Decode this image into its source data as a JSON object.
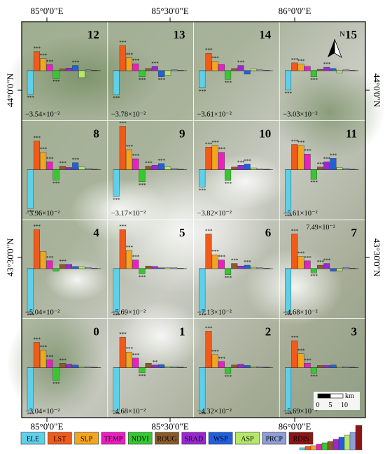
{
  "map": {
    "top_lon_labels": [
      "85°0'0\"E",
      "85°30'0\"E",
      "86°0'0\"E"
    ],
    "bottom_lon_labels": [
      "85°0'0\"E",
      "85°30'0\"E",
      "86°0'0\"E"
    ],
    "left_lat_labels": [
      "44°0'0\"N",
      "43°30'0\"N"
    ],
    "right_lat_labels": [
      "44°0'0\"N",
      "43°30'0\"N"
    ],
    "north_label": "N",
    "scale_bar": {
      "labels": [
        "0",
        "5",
        "10"
      ],
      "unit": "km"
    }
  },
  "legend": {
    "items": [
      {
        "label": "ELE",
        "color": "#5fd0ea"
      },
      {
        "label": "LST",
        "color": "#f05a1a"
      },
      {
        "label": "SLP",
        "color": "#f2a51f"
      },
      {
        "label": "TEMP",
        "color": "#ec1ec1"
      },
      {
        "label": "NDVI",
        "color": "#35c930"
      },
      {
        "label": "ROUG",
        "color": "#8a5a2a"
      },
      {
        "label": "SRAD",
        "color": "#9a28d0"
      },
      {
        "label": "WSP",
        "color": "#1f5fe0"
      },
      {
        "label": "ASP",
        "color": "#b5e86a"
      },
      {
        "label": "PRCP",
        "color": "#8fa0d8"
      },
      {
        "label": "RDIS",
        "color": "#8b1616"
      }
    ]
  },
  "panels": [
    {
      "id": "12",
      "ele": "−3.54×10⁻²",
      "values": [
        -0.55,
        0.44,
        0.28,
        0.14,
        -0.18,
        0.04,
        0.06,
        0.12,
        -0.16,
        0.02,
        0.01
      ],
      "stars": [
        "***",
        "***",
        "***",
        "***",
        "***",
        "",
        "",
        "***",
        "",
        "",
        ""
      ]
    },
    {
      "id": "13",
      "ele": "−3.78×10⁻²",
      "values": [
        -0.56,
        0.58,
        0.3,
        0.16,
        -0.14,
        0.05,
        0.1,
        -0.14,
        -0.1,
        0.02,
        0.01
      ],
      "stars": [
        "***",
        "***",
        "***",
        "***",
        "***",
        "",
        "***",
        "***",
        "",
        "",
        ""
      ]
    },
    {
      "id": "14",
      "ele": "−3.61×10⁻²",
      "values": [
        -0.4,
        0.4,
        0.22,
        0.14,
        -0.2,
        0.05,
        0.12,
        -0.08,
        0.04,
        0.02,
        0.01
      ],
      "stars": [
        "***",
        "***",
        "***",
        "",
        "***",
        "",
        "***",
        "",
        "",
        "",
        ""
      ]
    },
    {
      "id": "15",
      "ele": "−3.03×10⁻²",
      "values": [
        -0.45,
        0.18,
        0.15,
        0.1,
        -0.14,
        0.03,
        0.08,
        0.05,
        -0.05,
        0.02,
        0.01
      ],
      "stars": [
        "***",
        "***",
        "***",
        "",
        "***",
        "",
        "***",
        "",
        "",
        "",
        ""
      ]
    },
    {
      "id": "8",
      "ele": "−3.96×10⁻²",
      "values": [
        -0.9,
        0.66,
        0.4,
        0.18,
        -0.24,
        0.08,
        0.05,
        0.16,
        0.06,
        0.03,
        0.01
      ],
      "stars": [
        "***",
        "***",
        "***",
        "***",
        "***",
        "***",
        "",
        "***",
        "",
        "",
        ""
      ]
    },
    {
      "id": "9",
      "ele": "−3.17×10⁻²",
      "values": [
        -0.62,
        1.0,
        0.46,
        0.25,
        -0.28,
        0.08,
        0.1,
        0.14,
        0.06,
        0.03,
        0.01
      ],
      "stars": [
        "***",
        "***",
        "***",
        "***",
        "***",
        "***",
        "",
        "***",
        "",
        "",
        ""
      ]
    },
    {
      "id": "10",
      "ele": "−3.82×10⁻²",
      "values": [
        -0.4,
        0.52,
        0.56,
        0.4,
        -0.25,
        0.06,
        0.1,
        0.13,
        0.04,
        0.02,
        0.01
      ],
      "stars": [
        "***",
        "***",
        "***",
        "***",
        "***",
        "",
        "***",
        "***",
        "",
        "",
        ""
      ]
    },
    {
      "id": "11",
      "ele": "−5.61×10⁻²",
      "values": [
        -1.0,
        0.58,
        0.56,
        0.36,
        -0.22,
        0.06,
        0.18,
        0.26,
        0.05,
        0.03,
        0.01
      ],
      "stars": [
        "***",
        "***",
        "***",
        "***",
        "***",
        "***",
        "***",
        "***",
        "",
        "",
        ""
      ]
    },
    {
      "id": "4",
      "ele": "−5.04×10⁻²",
      "values": [
        -1.0,
        0.9,
        0.4,
        0.18,
        -0.06,
        0.1,
        0.1,
        0.05,
        0.05,
        0.03,
        0.01
      ],
      "stars": [
        "***",
        "***",
        "",
        "***",
        "",
        "***",
        "",
        "",
        "",
        "",
        ""
      ]
    },
    {
      "id": "5",
      "ele": "−5.69×10⁻²",
      "values": [
        -1.0,
        0.9,
        0.42,
        0.2,
        -0.12,
        0.06,
        0.05,
        0.02,
        0.02,
        0.02,
        0.01
      ],
      "stars": [
        "***",
        "***",
        "***",
        "***",
        "***",
        "",
        "",
        "",
        "",
        "",
        ""
      ]
    },
    {
      "id": "6",
      "ele": "−7.13×10⁻²",
      "values": [
        -1.0,
        0.8,
        0.32,
        0.2,
        -0.14,
        0.12,
        0.06,
        0.08,
        0.03,
        0.02,
        0.01
      ],
      "stars": [
        "***",
        "***",
        "***",
        "***",
        "***",
        "***",
        "",
        "***",
        "",
        "",
        ""
      ]
    },
    {
      "id": "7",
      "ele": "−4.68×10⁻²",
      "values": [
        -1.0,
        0.8,
        0.28,
        0.18,
        -0.1,
        0.08,
        0.12,
        -0.06,
        -0.05,
        0.03,
        0.01
      ],
      "stars": [
        "***",
        "***",
        "***",
        "***",
        "***",
        "***",
        "***",
        "",
        "",
        "",
        ""
      ]
    },
    {
      "id": "0",
      "ele": "−3.04×10⁻²",
      "values": [
        -1.0,
        0.58,
        0.4,
        0.18,
        -0.3,
        0.1,
        0.08,
        0.06,
        0.03,
        0.02,
        0.01
      ],
      "stars": [
        "***",
        "***",
        "***",
        "***",
        "***",
        "***",
        "",
        "",
        "",
        "",
        ""
      ]
    },
    {
      "id": "1",
      "ele": "−4.68×10⁻²",
      "values": [
        -1.0,
        0.7,
        0.36,
        0.22,
        -0.12,
        0.1,
        0.06,
        0.07,
        0.03,
        0.02,
        0.01
      ],
      "stars": [
        "***",
        "***",
        "***",
        "***",
        "***",
        "",
        "**",
        "",
        "",
        "",
        ""
      ]
    },
    {
      "id": "2",
      "ele": "−4.32×10⁻²",
      "values": [
        -1.0,
        0.84,
        0.3,
        0.14,
        -0.14,
        0.06,
        0.08,
        0.05,
        0.03,
        0.02,
        0.01
      ],
      "stars": [
        "***",
        "***",
        "***",
        "***",
        "***",
        "",
        "",
        "",
        "",
        "",
        ""
      ]
    },
    {
      "id": "3",
      "ele": "−5.69×10⁻²",
      "values": [
        -1.0,
        0.62,
        0.32,
        0.1,
        -0.13,
        0.05,
        0.05,
        0.06,
        0.03,
        0.02,
        0.01
      ],
      "stars": [
        "***",
        "***",
        "***",
        "***",
        "***",
        "",
        "",
        "",
        "",
        "",
        ""
      ]
    }
  ],
  "annotations": [
    {
      "panel": "7",
      "text": "7.49×10⁻²"
    }
  ]
}
